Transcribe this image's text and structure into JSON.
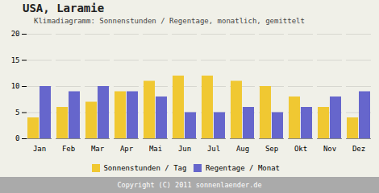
{
  "chart_data": {
    "type": "bar",
    "title": "USA, Laramie",
    "subtitle": "Klimadiagramm: Sonnenstunden / Regentage, monatlich, gemittelt",
    "caption": "Copyright (C) 2011 sonnenlaender.de",
    "categories": [
      "Jan",
      "Feb",
      "Mar",
      "Apr",
      "Mai",
      "Jun",
      "Jul",
      "Aug",
      "Sep",
      "Okt",
      "Nov",
      "Dez"
    ],
    "series": [
      {
        "name": "Sonnenstunden / Tag",
        "color": "#f0c832",
        "values": [
          4,
          6,
          7,
          9,
          11,
          12,
          12,
          11,
          10,
          8,
          6,
          4
        ]
      },
      {
        "name": "Regentage / Monat",
        "color": "#6666cc",
        "values": [
          10,
          9,
          10,
          9,
          8,
          5,
          5,
          6,
          5,
          6,
          8,
          9
        ]
      }
    ],
    "ylim": [
      0,
      20
    ],
    "yticks": [
      0,
      5,
      10,
      15,
      20
    ],
    "grid": true,
    "legend": "bottom"
  }
}
